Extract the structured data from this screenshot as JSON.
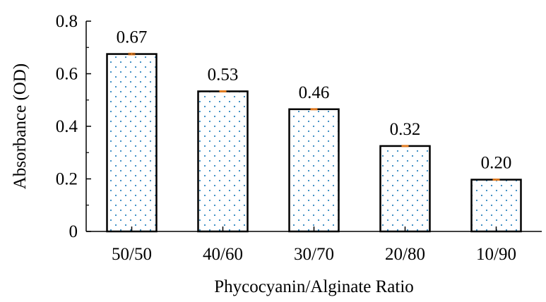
{
  "chart_data": {
    "type": "bar",
    "title": "",
    "xlabel": "Phycocyanin/Alginate Ratio",
    "ylabel": "Absorbance (OD)",
    "categories": [
      "50/50",
      "40/60",
      "30/70",
      "20/80",
      "10/90"
    ],
    "values": [
      0.675,
      0.533,
      0.465,
      0.325,
      0.197
    ],
    "data_labels": [
      "0.67",
      "0.53",
      "0.46",
      "0.32",
      "0.20"
    ],
    "error": [
      0.003,
      0.002,
      0.002,
      0.002,
      0.002
    ],
    "ylim": [
      0,
      0.8
    ],
    "yticks": [
      0,
      0.2,
      0.4,
      0.6,
      0.8
    ],
    "ytick_labels": [
      "0",
      "0.2",
      "0.4",
      "0.6",
      "0.8"
    ],
    "grid": false,
    "legend": "none",
    "colors": {
      "bar_fill": "#ffffff",
      "bar_edge": "#000000",
      "bar_dots": "#2e86c1",
      "error_bar": "#e67e22"
    }
  }
}
